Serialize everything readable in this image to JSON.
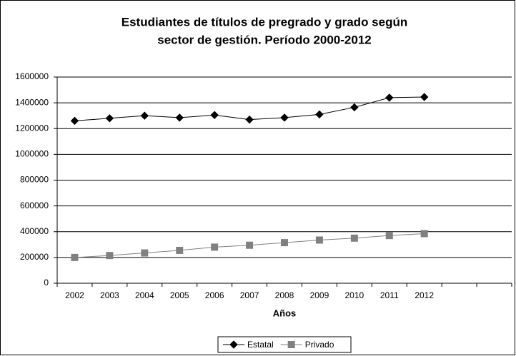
{
  "chart_data": {
    "type": "line",
    "title": [
      "Estudiantes de títulos de pregrado y grado según",
      "sector de gestión. Período 2000-2012"
    ],
    "x_label": "Años",
    "categories": [
      "2002",
      "2003",
      "2004",
      "2005",
      "2006",
      "2007",
      "2008",
      "2009",
      "2010",
      "2011",
      "2012",
      null,
      null
    ],
    "series": [
      {
        "name": "Estatal",
        "color": "#000000",
        "marker": "diamond",
        "values": [
          1260000,
          1280000,
          1300000,
          1285000,
          1305000,
          1270000,
          1285000,
          1310000,
          1365000,
          1440000,
          1445000,
          null,
          null
        ]
      },
      {
        "name": "Privado",
        "color": "#808080",
        "marker": "square",
        "values": [
          200000,
          215000,
          235000,
          255000,
          280000,
          295000,
          315000,
          335000,
          350000,
          370000,
          385000,
          null,
          null
        ]
      }
    ],
    "ylim": [
      0,
      1600000
    ],
    "yticks": [
      0,
      200000,
      400000,
      600000,
      800000,
      1000000,
      1200000,
      1400000,
      1600000
    ],
    "grid": true,
    "legend": "bottom"
  }
}
